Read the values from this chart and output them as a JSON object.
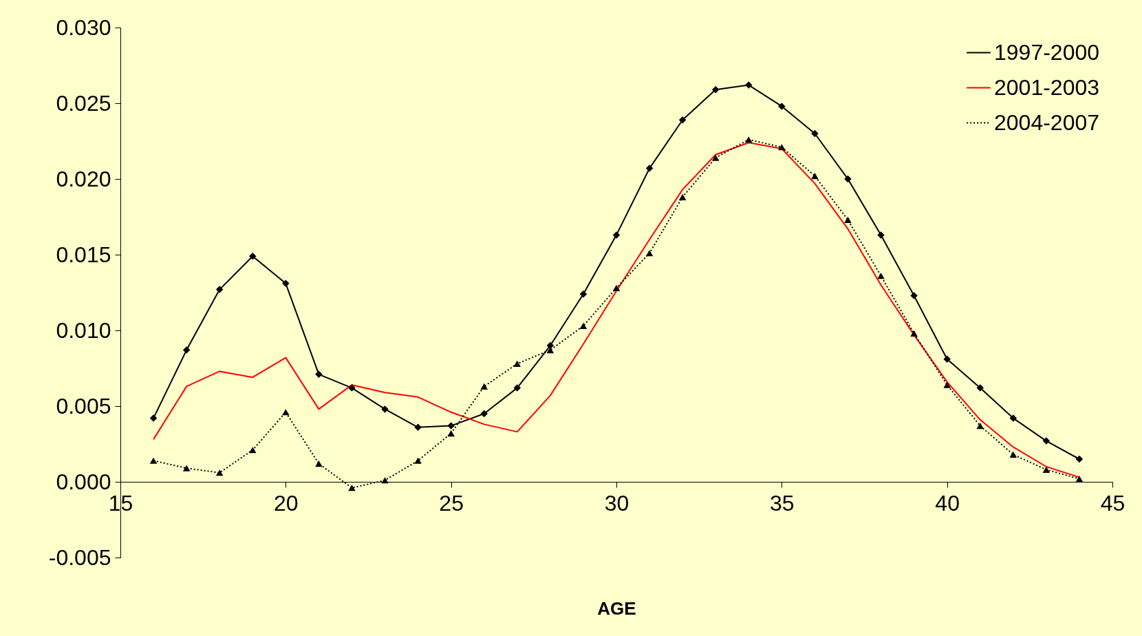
{
  "chart_data": {
    "type": "line",
    "xlabel": "AGE",
    "x": [
      16,
      17,
      18,
      19,
      20,
      21,
      22,
      23,
      24,
      25,
      26,
      27,
      28,
      29,
      30,
      31,
      32,
      33,
      34,
      35,
      36,
      37,
      38,
      39,
      40,
      41,
      42,
      43,
      44
    ],
    "xlim": [
      15,
      45
    ],
    "xticks": [
      15,
      20,
      25,
      30,
      35,
      40,
      45
    ],
    "ylim": [
      -0.005,
      0.03
    ],
    "yticks": [
      {
        "value": -0.005,
        "label": "-0.005"
      },
      {
        "value": 0,
        "label": "0.000"
      },
      {
        "value": 0.005,
        "label": "0.005"
      },
      {
        "value": 0.01,
        "label": "0.010"
      },
      {
        "value": 0.015,
        "label": "0.015"
      },
      {
        "value": 0.02,
        "label": "0.020"
      },
      {
        "value": 0.025,
        "label": "0.025"
      },
      {
        "value": 0.03,
        "label": "0.030"
      }
    ],
    "grid": false,
    "legend": "top right",
    "series": [
      {
        "name": "1997-2000",
        "color": "#000000",
        "marker": "diamond",
        "line_style": "solid",
        "values": [
          0.0042,
          0.0087,
          0.0127,
          0.0149,
          0.0131,
          0.0071,
          0.0062,
          0.0048,
          0.0036,
          0.0037,
          0.0045,
          0.0062,
          0.009,
          0.0124,
          0.0163,
          0.0207,
          0.0239,
          0.0259,
          0.0262,
          0.0248,
          0.023,
          0.02,
          0.0163,
          0.0123,
          0.0081,
          0.0062,
          0.0042,
          0.0027,
          0.0015
        ]
      },
      {
        "name": "2001-2003",
        "color": "#ff0000",
        "marker": "none",
        "line_style": "solid",
        "values": [
          0.0028,
          0.0063,
          0.0073,
          0.0069,
          0.0082,
          0.0048,
          0.0064,
          0.0059,
          0.0056,
          0.0046,
          0.0038,
          0.0033,
          0.0057,
          0.0091,
          0.0126,
          0.016,
          0.0193,
          0.0216,
          0.0224,
          0.022,
          0.0197,
          0.0167,
          0.013,
          0.0097,
          0.0066,
          0.0041,
          0.0023,
          0.001,
          0.0003
        ]
      },
      {
        "name": "2004-2007",
        "color": "#000000",
        "marker": "triangle",
        "line_style": "dotted",
        "values": [
          0.0014,
          0.0009,
          0.0006,
          0.0021,
          0.0046,
          0.0012,
          -0.0004,
          0.0001,
          0.0014,
          0.0032,
          0.0063,
          0.0078,
          0.0087,
          0.0103,
          0.0128,
          0.0151,
          0.0188,
          0.0214,
          0.0226,
          0.0221,
          0.0202,
          0.0173,
          0.0136,
          0.0098,
          0.0064,
          0.0037,
          0.0018,
          0.0008,
          0.0002
        ]
      }
    ]
  }
}
